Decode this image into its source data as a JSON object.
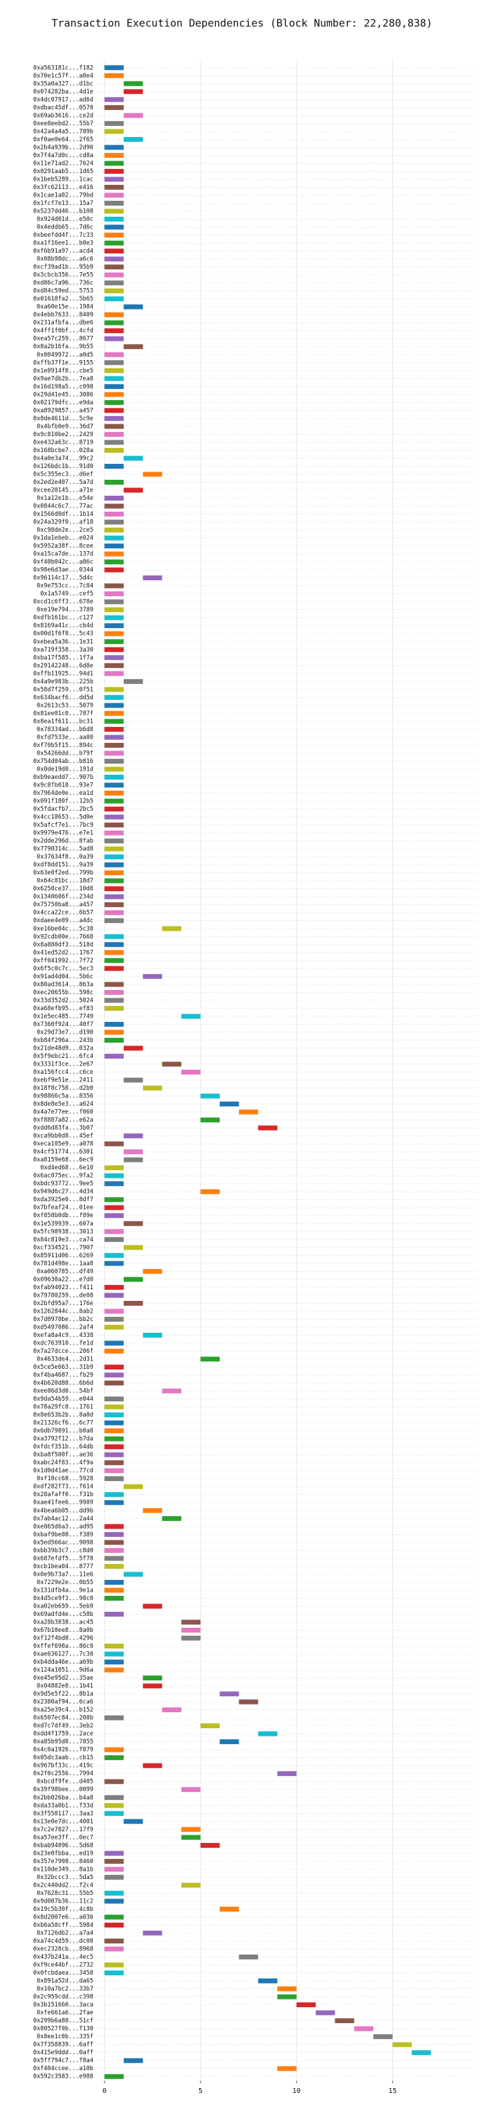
{
  "chart_data": {
    "type": "gantt",
    "title": "Transaction Execution Dependencies (Block Number: 22,280,838)",
    "categories": [
      "0xa563181c...f182",
      "0x70e1c57f...a0e4",
      "0x35a0a327...d1bc",
      "0x074282ba...4d1e",
      "0x4dc07917...ad6d",
      "0xdbac45df...0570",
      "0x69ab3616...ce2d",
      "0xee8eebd2...55b7",
      "0x42a4a4a5...789b",
      "0xf0ae0e64...2f65",
      "0x2b4a939b...2d90",
      "0x7f4a7d0c...cd8a",
      "0x11e71ad2...7624",
      "0x0291aab5...1d65",
      "0x1beb5289...1cac",
      "0x3fc62113...e416",
      "0x1cae1a02...79bd",
      "0x1fcf7e13...15a7",
      "0x5237dd46...b108",
      "0x924d01d...e50c",
      "0x4eddb65...7d6c",
      "0xbeefdd4f...7c33",
      "0xa1f16ee1...b0e3",
      "0xf6b91a97...acd4",
      "0x08b98dc...a6c6",
      "0xcf39ad1b...95b9",
      "0x3cbcb356...7e55",
      "0xd86c7a96...736c",
      "0xd84c59ed...5753",
      "0x01618fa2...5b65",
      "0xa60e15e...1984",
      "0x4ebb7633...8409",
      "0x231afbfa...dbe6",
      "0x4ff1f0bf...4cfd",
      "0xea57c259...8677",
      "0x8a2b16fa...9b55",
      "0x0049972...a0d5",
      "0xffb37f1e...9155",
      "0x1e8914f8...cbe5",
      "0x9ae7db2b...7ea8",
      "0x16d198a5...c098",
      "0x29d41e45...3086",
      "0x02179dfc...e9da",
      "0xa8929857...a457",
      "0x8de4611d...5c9e",
      "0x4bfb0e9...36d7",
      "0x9c810be2...2429",
      "0xe432a63c...8719",
      "0x168bcbe7...028a",
      "0x4a0e3a74...99c2",
      "0x126bdc1b...91d0",
      "0x5c355ec3...d6ef",
      "0x2ed2e407...5a7d",
      "0xcee20145...a71e",
      "0x1a12e1b...e54e",
      "0x0844c6c7...77ac",
      "0x1566d0df...1b14",
      "0x24a329f0...af18",
      "0xc98de2e...2ce5",
      "0x1da1ebeb...e024",
      "0x5952a38f...8cee",
      "0xa15ca7de...137d",
      "0xf40b042c...a86c",
      "0x98e6d3ae...0344",
      "0x96114c17...5d4c",
      "0x9e753cc...7c84",
      "0x1a5749...cef5",
      "0xcd1c6ff3...678e",
      "0xe19e794...3789",
      "0xdfb161bc...c127",
      "0x8169a41c...cb4d",
      "0x00d1f6f8...5c43",
      "0xebea5a36...1e31",
      "0xa719f358...3a30",
      "0xba17f585...1f7a",
      "0x29142248...6d8e",
      "0xffb11925...94d1",
      "0x4a9e983b...225b",
      "0x58d7f259...0f51",
      "0x634bacf6...dd5d",
      "0x2613c53...5079",
      "0x81ee01c0...787f",
      "0x8ea1f611...bc31",
      "0x78334ad...b6d8",
      "0xfd7533e...aa80",
      "0xf70b5f15...894c",
      "0x54266dd...b79f",
      "0x754d04ab...b816",
      "0x0de19d0...191d",
      "0xb9eaedd7...907b",
      "0x9c8fb018...93e7",
      "0x7964de0e...ea1d",
      "0x091f180f...12b5",
      "0x5fdacfb7...2bc5",
      "0x4cc18653...5d0e",
      "0x5afcf7e1...7bc9",
      "0x9979e476...e7e1",
      "0x2dde296d...8fab",
      "0x7790314c...5ad8",
      "0x37634f8...0a39",
      "0xdf8dd151...9a39",
      "0x63e0f2ed...799b",
      "0x64c81bc...18d7",
      "0x6258ce37...10d8",
      "0x1340606f...234d",
      "0x75750ba8...a457",
      "0x4cca22ce...6b57",
      "0xdaee4e09...a4dc",
      "0xe16be04c...5c38",
      "0x92cdb00e...7668",
      "0x8a880df3...518d",
      "0x41ed52d2...1767",
      "0xff041992...7f72",
      "0x6f5c0c7c...5ec3",
      "0x91ad4d04...5b6c",
      "0x80ad3614...863a",
      "0xec20655b...598c",
      "0x33d352d2...5024",
      "0xa68efb95...ef83",
      "0x1e5ec485...7749",
      "0x7360f924...40f7",
      "0x29d73e7...d190",
      "0xb84f296a...243b",
      "0x21de48d9...032a",
      "0x5f9ebc21...6fc4",
      "0x3331f3ce...2e67",
      "0xa156fcc4...c6ce",
      "0xebf9e51e...2411",
      "0x18f8c758...d2b0",
      "0x98866c5a...8356",
      "0x8de8e5e3...a624",
      "0x4a7e77ee...f060",
      "0xf8887a82...e62a",
      "0xdd6d83fa...3b07",
      "0xca9bb0d8...45ef",
      "0xeca105e9...a078",
      "0x4cf51774...6301",
      "0xa8159e68...6ec9",
      "0xd4ed68...6e10",
      "0x6ac075ec...9fa2",
      "0xbdc93772...9ee5",
      "0x949d6c27...4d34",
      "0xda3925e0...8df7",
      "0x7bfeaf24...01ee",
      "0xf858b0db...f89e",
      "0x1e539939...607a",
      "0x5fc98938...3013",
      "0x84c819e3...ca74",
      "0xcf334521...7907",
      "0x85911d06...6269",
      "0x781d498e...1aa8",
      "0xa060785...df49",
      "0x09630a22...e7d0",
      "0xfab94023...f411",
      "0x79780259...de08",
      "0x2bfd95a7...176e",
      "0x1262844c...8ab2",
      "0x7d0970be...bb2c",
      "0xd5497086...2af4",
      "0xefa8a4c9...4338",
      "0xdc763910...fe1d",
      "0x7a27dcce...206f",
      "0x4633de4...2d31",
      "0x5ce5e663...31b9",
      "0xf4ba4687...fb29",
      "0x4b620d88...6b6d",
      "0xee86d3d0...54bf",
      "0x9da54b59...e044",
      "0x78a29fc8...1761",
      "0x8e653b2b...8a0d",
      "0x21326cf6...6c77",
      "0x6db79891...b0a8",
      "0xa3792f12...b7da",
      "0xfdcf351b...64db",
      "0xba8f500f...ae36",
      "0xabc24f83...4f9a",
      "0x1d0d41ae...77cd",
      "0xf10cc68...5928",
      "0xdf282f73...f614",
      "0x28afaff0...f31b",
      "0xae41fee6...9989",
      "0x4bea6b05...dd9b",
      "0x7ab4ac12...2a44",
      "0xe865d6a3...ad95",
      "0xbaf9be08...f389",
      "0x5ed566ac...9098",
      "0xbb39b3c7...c8d0",
      "0x687efdf5...5f78",
      "0xcb1bea04...8777",
      "0x0e9b73a7...11e6",
      "0x7229e2e...0b55",
      "0x131dfb4a...9e1a",
      "0x4d5ce9f3...98c0",
      "0xa02eb659...5eb9",
      "0x69adfd4e...c58b",
      "0xa28b3838...ac45",
      "0x67b10ee8...8a0b",
      "0xf12f4bd8...4296",
      "0xffef698a...86c0",
      "0xae636127...7c30",
      "0xb4dda46e...a69b",
      "0x124a1051...9d6a",
      "0xe45e95d2...35ae",
      "0x04882e8...1b41",
      "0x9d5e5f22...8b1a",
      "0x2380af94...6ca6",
      "0xa25e39c4...b152",
      "0x6507ec84...208b",
      "0xd7c7df49...3eb2",
      "0xdd4f1759...2ace",
      "0xa85b95d8...7855",
      "0x4c0a1926...f879",
      "0x05dc3aab...cb15",
      "0x967bf33c...419c",
      "0x2f0c2556...7994",
      "0xbcdf9fe...d405",
      "0x39f98bee...0099",
      "0x2bb026ba...b4a8",
      "0xda33a0b1...f33d",
      "0x3f558117...3aa3",
      "0x13e0e7dc...4001",
      "0x7c2e7027...17f9",
      "0xa57ee3ff...0ec7",
      "0xbab94096...5d68",
      "0x23e0fbba...ed19",
      "0x357e7908...8460",
      "0x110de349...8a1b",
      "0x32bccc3...5da5",
      "0x2c440dd2...f2c4",
      "0x7628c31...55b5",
      "0x9d007b36...11c2",
      "0x19c5b30f...4c8b",
      "0x8d2007e6...a036",
      "0xb6a58cff...5984",
      "0x7126db2...a7a4",
      "0xa74c4d59...dc08",
      "0xec2328cb...8968",
      "0x437b241a...4ec5",
      "0xf9ce44bf...2732",
      "0x0fcbdaea...3458",
      "0x891a52d...da65",
      "0x10a7bc2...33b7",
      "0x2c959cdd...c398",
      "0x3b151660...3aca",
      "0xfe661a6...2fae",
      "0x299b6a80...51cf",
      "0x80527f0b...f130",
      "0x8ee1c0b...335f",
      "0x7f358839...6aff",
      "0x415e9ddd...0aff",
      "0x5ff794c7...f8a4",
      "0xf404ccee...a10b",
      "0x592c3583...e988"
    ],
    "values": [
      [
        0,
        1
      ],
      [
        0,
        1
      ],
      [
        1,
        2
      ],
      [
        1,
        2
      ],
      [
        0,
        1
      ],
      [
        0,
        1
      ],
      [
        1,
        2
      ],
      [
        0,
        1
      ],
      [
        0,
        1
      ],
      [
        1,
        2
      ],
      [
        0,
        1
      ],
      [
        0,
        1
      ],
      [
        0,
        1
      ],
      [
        0,
        1
      ],
      [
        0,
        1
      ],
      [
        0,
        1
      ],
      [
        0,
        1
      ],
      [
        0,
        1
      ],
      [
        0,
        1
      ],
      [
        0,
        1
      ],
      [
        0,
        1
      ],
      [
        0,
        1
      ],
      [
        0,
        1
      ],
      [
        0,
        1
      ],
      [
        0,
        1
      ],
      [
        0,
        1
      ],
      [
        0,
        1
      ],
      [
        0,
        1
      ],
      [
        0,
        1
      ],
      [
        0,
        1
      ],
      [
        1,
        2
      ],
      [
        0,
        1
      ],
      [
        0,
        1
      ],
      [
        0,
        1
      ],
      [
        0,
        1
      ],
      [
        1,
        2
      ],
      [
        0,
        1
      ],
      [
        0,
        1
      ],
      [
        0,
        1
      ],
      [
        0,
        1
      ],
      [
        0,
        1
      ],
      [
        0,
        1
      ],
      [
        0,
        1
      ],
      [
        0,
        1
      ],
      [
        0,
        1
      ],
      [
        0,
        1
      ],
      [
        0,
        1
      ],
      [
        0,
        1
      ],
      [
        0,
        1
      ],
      [
        1,
        2
      ],
      [
        0,
        1
      ],
      [
        2,
        3
      ],
      [
        0,
        1
      ],
      [
        1,
        2
      ],
      [
        0,
        1
      ],
      [
        0,
        1
      ],
      [
        0,
        1
      ],
      [
        0,
        1
      ],
      [
        0,
        1
      ],
      [
        0,
        1
      ],
      [
        0,
        1
      ],
      [
        0,
        1
      ],
      [
        0,
        1
      ],
      [
        0,
        1
      ],
      [
        2,
        3
      ],
      [
        0,
        1
      ],
      [
        0,
        1
      ],
      [
        0,
        1
      ],
      [
        0,
        1
      ],
      [
        0,
        1
      ],
      [
        0,
        1
      ],
      [
        0,
        1
      ],
      [
        0,
        1
      ],
      [
        0,
        1
      ],
      [
        0,
        1
      ],
      [
        0,
        1
      ],
      [
        0,
        1
      ],
      [
        1,
        2
      ],
      [
        0,
        1
      ],
      [
        0,
        1
      ],
      [
        0,
        1
      ],
      [
        0,
        1
      ],
      [
        0,
        1
      ],
      [
        0,
        1
      ],
      [
        0,
        1
      ],
      [
        0,
        1
      ],
      [
        0,
        1
      ],
      [
        0,
        1
      ],
      [
        0,
        1
      ],
      [
        0,
        1
      ],
      [
        0,
        1
      ],
      [
        0,
        1
      ],
      [
        0,
        1
      ],
      [
        0,
        1
      ],
      [
        0,
        1
      ],
      [
        0,
        1
      ],
      [
        0,
        1
      ],
      [
        0,
        1
      ],
      [
        0,
        1
      ],
      [
        0,
        1
      ],
      [
        0,
        1
      ],
      [
        0,
        1
      ],
      [
        0,
        1
      ],
      [
        0,
        1
      ],
      [
        0,
        1
      ],
      [
        0,
        1
      ],
      [
        0,
        1
      ],
      [
        0,
        1
      ],
      [
        3,
        4
      ],
      [
        0,
        1
      ],
      [
        0,
        1
      ],
      [
        0,
        1
      ],
      [
        0,
        1
      ],
      [
        0,
        1
      ],
      [
        2,
        3
      ],
      [
        0,
        1
      ],
      [
        0,
        1
      ],
      [
        0,
        1
      ],
      [
        0,
        1
      ],
      [
        4,
        5
      ],
      [
        0,
        1
      ],
      [
        0,
        1
      ],
      [
        0,
        1
      ],
      [
        1,
        2
      ],
      [
        0,
        1
      ],
      [
        3,
        4
      ],
      [
        4,
        5
      ],
      [
        1,
        2
      ],
      [
        2,
        3
      ],
      [
        5,
        6
      ],
      [
        6,
        7
      ],
      [
        7,
        8
      ],
      [
        5,
        6
      ],
      [
        8,
        9
      ],
      [
        1,
        2
      ],
      [
        0,
        1
      ],
      [
        1,
        2
      ],
      [
        1,
        2
      ],
      [
        0,
        1
      ],
      [
        0,
        1
      ],
      [
        0,
        1
      ],
      [
        5,
        6
      ],
      [
        0,
        1
      ],
      [
        0,
        1
      ],
      [
        0,
        1
      ],
      [
        1,
        2
      ],
      [
        0,
        1
      ],
      [
        0,
        1
      ],
      [
        1,
        2
      ],
      [
        0,
        1
      ],
      [
        0,
        1
      ],
      [
        2,
        3
      ],
      [
        1,
        2
      ],
      [
        0,
        1
      ],
      [
        0,
        1
      ],
      [
        1,
        2
      ],
      [
        0,
        1
      ],
      [
        0,
        1
      ],
      [
        0,
        1
      ],
      [
        2,
        3
      ],
      [
        0,
        1
      ],
      [
        0,
        1
      ],
      [
        5,
        6
      ],
      [
        0,
        1
      ],
      [
        0,
        1
      ],
      [
        0,
        1
      ],
      [
        3,
        4
      ],
      [
        0,
        1
      ],
      [
        0,
        1
      ],
      [
        0,
        1
      ],
      [
        0,
        1
      ],
      [
        0,
        1
      ],
      [
        0,
        1
      ],
      [
        0,
        1
      ],
      [
        0,
        1
      ],
      [
        0,
        1
      ],
      [
        0,
        1
      ],
      [
        0,
        1
      ],
      [
        1,
        2
      ],
      [
        0,
        1
      ],
      [
        0,
        1
      ],
      [
        2,
        3
      ],
      [
        3,
        4
      ],
      [
        0,
        1
      ],
      [
        0,
        1
      ],
      [
        0,
        1
      ],
      [
        0,
        1
      ],
      [
        0,
        1
      ],
      [
        0,
        1
      ],
      [
        1,
        2
      ],
      [
        0,
        1
      ],
      [
        0,
        1
      ],
      [
        0,
        1
      ],
      [
        2,
        3
      ],
      [
        0,
        1
      ],
      [
        4,
        5
      ],
      [
        4,
        5
      ],
      [
        4,
        5
      ],
      [
        0,
        1
      ],
      [
        0,
        1
      ],
      [
        0,
        1
      ],
      [
        0,
        1
      ],
      [
        2,
        3
      ],
      [
        2,
        3
      ],
      [
        6,
        7
      ],
      [
        7,
        8
      ],
      [
        3,
        4
      ],
      [
        0,
        1
      ],
      [
        5,
        6
      ],
      [
        8,
        9
      ],
      [
        6,
        7
      ],
      [
        0,
        1
      ],
      [
        0,
        1
      ],
      [
        2,
        3
      ],
      [
        9,
        10
      ],
      [
        0,
        1
      ],
      [
        4,
        5
      ],
      [
        0,
        1
      ],
      [
        0,
        1
      ],
      [
        0,
        1
      ],
      [
        1,
        2
      ],
      [
        4,
        5
      ],
      [
        4,
        5
      ],
      [
        5,
        6
      ],
      [
        0,
        1
      ],
      [
        0,
        1
      ],
      [
        0,
        1
      ],
      [
        0,
        1
      ],
      [
        4,
        5
      ],
      [
        0,
        1
      ],
      [
        0,
        1
      ],
      [
        6,
        7
      ],
      [
        0,
        1
      ],
      [
        0,
        1
      ],
      [
        2,
        3
      ],
      [
        0,
        1
      ],
      [
        0,
        1
      ],
      [
        7,
        8
      ],
      [
        0,
        1
      ],
      [
        0,
        1
      ],
      [
        8,
        9
      ],
      [
        9,
        10
      ],
      [
        9,
        10
      ],
      [
        10,
        11
      ],
      [
        11,
        12
      ],
      [
        12,
        13
      ],
      [
        13,
        14
      ],
      [
        14,
        15
      ],
      [
        15,
        16
      ],
      [
        16,
        17
      ],
      [
        1,
        2
      ],
      [
        9,
        10
      ],
      [
        0,
        1
      ]
    ],
    "colors": [
      "#1f77b4",
      "#ff7f0e",
      "#2ca02c",
      "#d62728",
      "#9467bd",
      "#8c564b",
      "#e377c2",
      "#7f7f7f",
      "#bcbd22",
      "#17becf"
    ],
    "xlim": [
      -0.4,
      19.4
    ],
    "xticks": [
      0,
      5,
      10,
      15
    ],
    "grid": true
  }
}
